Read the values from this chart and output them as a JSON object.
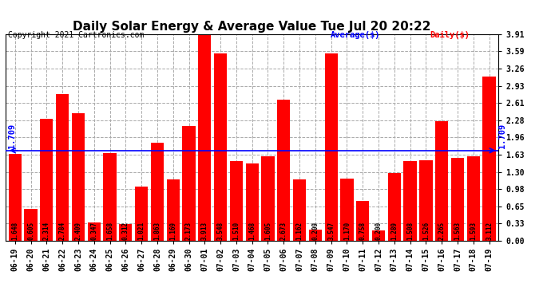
{
  "title": "Daily Solar Energy & Average Value Tue Jul 20 20:22",
  "copyright": "Copyright 2021 Cartronics.com",
  "legend_avg": "Average($)",
  "legend_daily": "Daily($)",
  "categories": [
    "06-19",
    "06-20",
    "06-21",
    "06-22",
    "06-23",
    "06-24",
    "06-25",
    "06-26",
    "06-27",
    "06-28",
    "06-29",
    "06-30",
    "07-01",
    "07-02",
    "07-03",
    "07-04",
    "07-05",
    "07-06",
    "07-07",
    "07-08",
    "07-09",
    "07-10",
    "07-11",
    "07-12",
    "07-13",
    "07-14",
    "07-15",
    "07-16",
    "07-17",
    "07-18",
    "07-19"
  ],
  "values": [
    1.648,
    0.605,
    2.314,
    2.784,
    2.409,
    0.347,
    1.658,
    0.312,
    1.021,
    1.863,
    1.169,
    2.173,
    3.913,
    3.548,
    1.51,
    1.468,
    1.605,
    2.673,
    1.162,
    0.209,
    3.547,
    1.17,
    0.758,
    0.2,
    1.289,
    1.508,
    1.526,
    2.265,
    1.563,
    1.593,
    3.112
  ],
  "average_value": 1.709,
  "bar_color": "#ff0000",
  "avg_line_color": "#0000ff",
  "avg_label_color": "#0000ff",
  "daily_label_color": "#ff0000",
  "title_color": "#000000",
  "background_color": "#ffffff",
  "grid_color": "#aaaaaa",
  "ylim": [
    0.0,
    3.91
  ],
  "yticks": [
    0.0,
    0.33,
    0.65,
    0.98,
    1.3,
    1.63,
    1.96,
    2.28,
    2.61,
    2.93,
    3.26,
    3.59,
    3.91
  ],
  "title_fontsize": 11,
  "tick_fontsize": 7,
  "bar_value_fontsize": 5.5,
  "avg_fontsize": 7.5
}
